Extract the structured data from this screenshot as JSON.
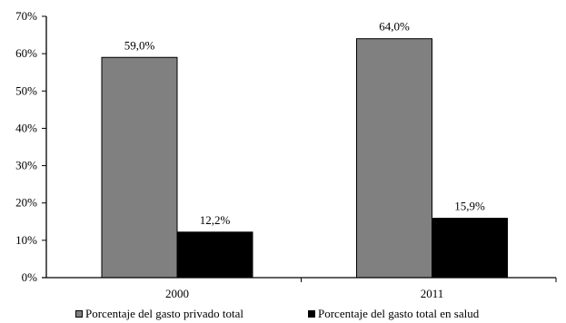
{
  "chart_data": {
    "type": "bar",
    "categories": [
      "2000",
      "2011"
    ],
    "series": [
      {
        "name": "Porcentaje del gasto privado total",
        "values": [
          59.0,
          64.0
        ],
        "labels": [
          "59,0%",
          "64,0%"
        ],
        "color": "#808080"
      },
      {
        "name": "Porcentaje del gasto total en salud",
        "values": [
          12.2,
          15.9
        ],
        "labels": [
          "12,2%",
          "15,9%"
        ],
        "color": "#000000"
      }
    ],
    "ylim": [
      0,
      70
    ],
    "yticks": [
      0,
      10,
      20,
      30,
      40,
      50,
      60,
      70
    ],
    "ytick_labels": [
      "0%",
      "10%",
      "20%",
      "30%",
      "40%",
      "50%",
      "60%",
      "70%"
    ],
    "grid": false,
    "legend_position": "bottom"
  }
}
